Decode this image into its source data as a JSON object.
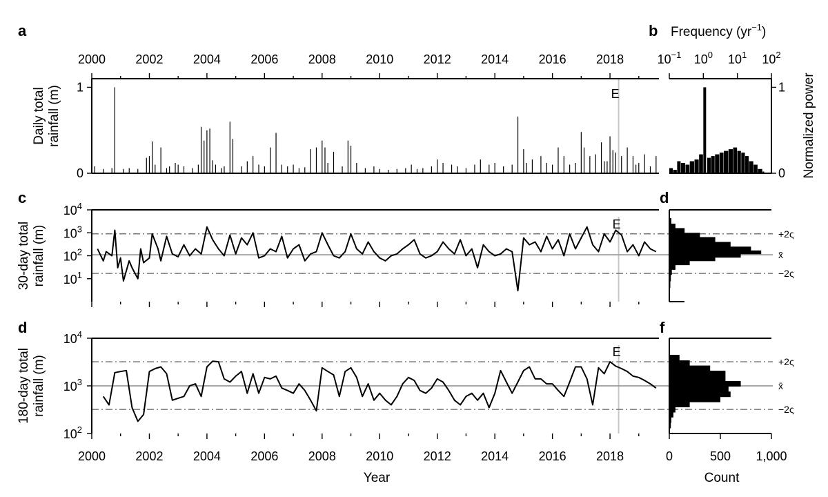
{
  "panels": {
    "a": "a",
    "b": "b",
    "c": "c",
    "d1": "d",
    "d2": "d",
    "f": "f"
  },
  "labels": {
    "frequency": "Frequency (yr",
    "frequency_sup": "−1",
    "frequency_close": ")",
    "normalized_power": "Normalized power",
    "year": "Year",
    "count": "Count",
    "event": "E"
  },
  "chart_data": [
    {
      "id": "a",
      "type": "bar",
      "ylabel": [
        "Daily total",
        "rainfall (m)"
      ],
      "xlim": [
        2000,
        2019.7
      ],
      "ylim": [
        0,
        1.1
      ],
      "xticks": [
        "2000",
        "2002",
        "2004",
        "2006",
        "2008",
        "2010",
        "2012",
        "2014",
        "2016",
        "2018"
      ],
      "yticks": [
        "0",
        "1"
      ],
      "event_year": 2018.3,
      "x": [
        2000.1,
        2000.4,
        2000.7,
        2000.8,
        2001.1,
        2001.3,
        2001.6,
        2001.9,
        2002.0,
        2002.1,
        2002.2,
        2002.4,
        2002.6,
        2002.7,
        2002.9,
        2003.0,
        2003.2,
        2003.5,
        2003.7,
        2003.8,
        2003.9,
        2004.0,
        2004.1,
        2004.2,
        2004.3,
        2004.5,
        2004.6,
        2004.8,
        2004.9,
        2005.2,
        2005.4,
        2005.6,
        2005.8,
        2006.0,
        2006.2,
        2006.4,
        2006.6,
        2006.8,
        2007.0,
        2007.2,
        2007.4,
        2007.6,
        2007.8,
        2008.0,
        2008.1,
        2008.2,
        2008.4,
        2008.7,
        2008.9,
        2009.0,
        2009.2,
        2009.5,
        2009.8,
        2010.0,
        2010.3,
        2010.6,
        2010.9,
        2011.1,
        2011.3,
        2011.5,
        2011.8,
        2012.0,
        2012.2,
        2012.5,
        2012.7,
        2013.0,
        2013.3,
        2013.5,
        2013.8,
        2014.0,
        2014.3,
        2014.6,
        2014.8,
        2015.0,
        2015.1,
        2015.3,
        2015.6,
        2015.8,
        2016.0,
        2016.2,
        2016.4,
        2016.6,
        2016.8,
        2017.0,
        2017.1,
        2017.3,
        2017.5,
        2017.7,
        2017.8,
        2017.9,
        2018.0,
        2018.1,
        2018.2,
        2018.4,
        2018.6,
        2018.8,
        2018.9,
        2019.0,
        2019.2,
        2019.4,
        2019.6
      ],
      "values": [
        0.08,
        0.05,
        0.06,
        1.0,
        0.05,
        0.06,
        0.05,
        0.18,
        0.2,
        0.37,
        0.1,
        0.3,
        0.06,
        0.08,
        0.12,
        0.1,
        0.08,
        0.06,
        0.1,
        0.54,
        0.38,
        0.5,
        0.52,
        0.15,
        0.1,
        0.06,
        0.08,
        0.6,
        0.4,
        0.08,
        0.14,
        0.2,
        0.1,
        0.08,
        0.3,
        0.47,
        0.1,
        0.08,
        0.1,
        0.06,
        0.07,
        0.28,
        0.3,
        0.38,
        0.3,
        0.12,
        0.25,
        0.08,
        0.38,
        0.32,
        0.12,
        0.06,
        0.08,
        0.05,
        0.04,
        0.05,
        0.06,
        0.1,
        0.05,
        0.06,
        0.08,
        0.16,
        0.12,
        0.1,
        0.08,
        0.06,
        0.1,
        0.16,
        0.1,
        0.12,
        0.08,
        0.1,
        0.66,
        0.28,
        0.12,
        0.16,
        0.2,
        0.12,
        0.1,
        0.3,
        0.2,
        0.1,
        0.12,
        0.48,
        0.3,
        0.2,
        0.22,
        0.36,
        0.14,
        0.14,
        0.43,
        0.27,
        0.24,
        0.2,
        0.3,
        0.2,
        0.1,
        0.12,
        0.22,
        0.08,
        0.2
      ]
    },
    {
      "id": "b",
      "type": "bar",
      "xlabel": "Frequency",
      "ylabel": "Normalized power",
      "xscale": "log",
      "xlim": [
        0.1,
        100
      ],
      "ylim": [
        0,
        1.1
      ],
      "xticks": [
        "10",
        "10",
        "10",
        "10"
      ],
      "xtick_exps": [
        "−1",
        "0",
        "1",
        "2"
      ],
      "yticks": [
        "0",
        "1"
      ],
      "x": [
        0.1,
        0.13,
        0.17,
        0.22,
        0.3,
        0.4,
        0.55,
        0.75,
        1.0,
        1.3,
        1.7,
        2.2,
        3.0,
        4.0,
        5.5,
        7.5,
        10,
        13,
        17,
        22,
        30,
        40,
        55
      ],
      "values": [
        0.06,
        0.04,
        0.14,
        0.12,
        0.1,
        0.14,
        0.16,
        0.22,
        1.0,
        0.18,
        0.2,
        0.22,
        0.24,
        0.26,
        0.28,
        0.3,
        0.26,
        0.24,
        0.2,
        0.14,
        0.1,
        0.05,
        0.02
      ]
    },
    {
      "id": "c",
      "type": "line",
      "ylabel": [
        "30-day total",
        "rainfall (m)"
      ],
      "yscale": "log",
      "xlim": [
        2000,
        2019.7
      ],
      "ylim": [
        1,
        10000
      ],
      "xticks": [
        "2000",
        "2002",
        "2004",
        "2006",
        "2008",
        "2010",
        "2012",
        "2014",
        "2016",
        "2018"
      ],
      "yticks": [
        "10",
        "10",
        "10",
        "10"
      ],
      "ytick_exps": [
        "1",
        "2",
        "3",
        "4"
      ],
      "mean": 110,
      "plus2sigma": 900,
      "minus2sigma": 17,
      "event_year": 2018.3,
      "x": [
        2000.2,
        2000.4,
        2000.5,
        2000.7,
        2000.8,
        2000.9,
        2001.0,
        2001.1,
        2001.3,
        2001.4,
        2001.6,
        2001.7,
        2001.8,
        2002.0,
        2002.1,
        2002.3,
        2002.4,
        2002.6,
        2002.8,
        2003.0,
        2003.2,
        2003.4,
        2003.6,
        2003.8,
        2004.0,
        2004.2,
        2004.4,
        2004.6,
        2004.8,
        2005.0,
        2005.2,
        2005.4,
        2005.6,
        2005.8,
        2006.0,
        2006.2,
        2006.4,
        2006.6,
        2006.8,
        2007.0,
        2007.2,
        2007.4,
        2007.6,
        2007.8,
        2008.0,
        2008.2,
        2008.4,
        2008.6,
        2008.8,
        2009.0,
        2009.2,
        2009.4,
        2009.6,
        2009.8,
        2010.0,
        2010.2,
        2010.4,
        2010.6,
        2010.8,
        2011.0,
        2011.2,
        2011.4,
        2011.6,
        2011.8,
        2012.0,
        2012.2,
        2012.4,
        2012.6,
        2012.8,
        2013.0,
        2013.2,
        2013.4,
        2013.6,
        2013.8,
        2014.0,
        2014.2,
        2014.4,
        2014.6,
        2014.8,
        2015.0,
        2015.2,
        2015.4,
        2015.6,
        2015.8,
        2016.0,
        2016.2,
        2016.4,
        2016.6,
        2016.8,
        2017.0,
        2017.2,
        2017.4,
        2017.6,
        2017.8,
        2018.0,
        2018.2,
        2018.4,
        2018.6,
        2018.8,
        2019.0,
        2019.2,
        2019.4,
        2019.6
      ],
      "values": [
        200,
        60,
        150,
        100,
        1300,
        30,
        80,
        8,
        60,
        30,
        10,
        200,
        50,
        80,
        900,
        200,
        60,
        700,
        120,
        90,
        300,
        100,
        200,
        120,
        1800,
        500,
        200,
        100,
        800,
        120,
        600,
        300,
        1000,
        80,
        100,
        200,
        150,
        700,
        80,
        200,
        300,
        60,
        120,
        150,
        1000,
        300,
        100,
        80,
        150,
        900,
        200,
        120,
        400,
        150,
        80,
        60,
        100,
        120,
        200,
        300,
        500,
        120,
        80,
        100,
        150,
        400,
        200,
        120,
        500,
        100,
        200,
        30,
        300,
        150,
        100,
        120,
        200,
        150,
        3,
        600,
        300,
        400,
        150,
        700,
        200,
        500,
        100,
        900,
        200,
        600,
        1800,
        300,
        150,
        900,
        400,
        1300,
        800,
        150,
        300,
        100,
        400,
        200,
        150
      ]
    },
    {
      "id": "d",
      "type": "bar",
      "xlabel": "Count",
      "orientation": "horizontal",
      "yscale": "log",
      "ylim": [
        1,
        10000
      ],
      "xlim": [
        0,
        1000
      ],
      "mean": 110,
      "plus2sigma": 900,
      "minus2sigma": 17,
      "sigma_labels": [
        "+2ς",
        "x̄",
        "−2ς"
      ],
      "y": [
        2,
        4,
        8,
        15,
        25,
        40,
        60,
        85,
        120,
        170,
        250,
        400,
        650,
        1000,
        1600,
        2500
      ],
      "values": [
        5,
        10,
        15,
        25,
        60,
        200,
        450,
        700,
        900,
        800,
        600,
        450,
        300,
        150,
        60,
        20
      ]
    },
    {
      "id": "d2",
      "type": "line",
      "ylabel": [
        "180-day total",
        "rainfall (m)"
      ],
      "xlabel": "Year",
      "yscale": "log",
      "xlim": [
        2000,
        2019.7
      ],
      "ylim": [
        100,
        10000
      ],
      "xticks": [
        "2000",
        "2002",
        "2004",
        "2006",
        "2008",
        "2010",
        "2012",
        "2014",
        "2016",
        "2018"
      ],
      "yticks": [
        "10",
        "10",
        "10"
      ],
      "ytick_exps": [
        "2",
        "3",
        "4"
      ],
      "mean": 1000,
      "plus2sigma": 3200,
      "minus2sigma": 320,
      "event_year": 2018.3,
      "x": [
        2000.4,
        2000.6,
        2000.8,
        2001.0,
        2001.2,
        2001.4,
        2001.6,
        2001.8,
        2002.0,
        2002.2,
        2002.4,
        2002.6,
        2002.8,
        2003.0,
        2003.2,
        2003.4,
        2003.6,
        2003.8,
        2004.0,
        2004.2,
        2004.4,
        2004.6,
        2004.8,
        2005.0,
        2005.2,
        2005.4,
        2005.6,
        2005.8,
        2006.0,
        2006.2,
        2006.4,
        2006.6,
        2006.8,
        2007.0,
        2007.2,
        2007.4,
        2007.6,
        2007.8,
        2008.0,
        2008.2,
        2008.4,
        2008.6,
        2008.8,
        2009.0,
        2009.2,
        2009.4,
        2009.6,
        2009.8,
        2010.0,
        2010.2,
        2010.4,
        2010.6,
        2010.8,
        2011.0,
        2011.2,
        2011.4,
        2011.6,
        2011.8,
        2012.0,
        2012.2,
        2012.4,
        2012.6,
        2012.8,
        2013.0,
        2013.2,
        2013.4,
        2013.6,
        2013.8,
        2014.0,
        2014.2,
        2014.4,
        2014.6,
        2014.8,
        2015.0,
        2015.2,
        2015.4,
        2015.6,
        2015.8,
        2016.0,
        2016.2,
        2016.4,
        2016.6,
        2016.8,
        2017.0,
        2017.2,
        2017.4,
        2017.6,
        2017.8,
        2018.0,
        2018.2,
        2018.4,
        2018.6,
        2018.8,
        2019.0,
        2019.2,
        2019.4,
        2019.6
      ],
      "values": [
        600,
        400,
        1900,
        2000,
        2100,
        350,
        180,
        250,
        2000,
        2300,
        2500,
        1800,
        500,
        550,
        600,
        1000,
        1100,
        600,
        2500,
        3300,
        3200,
        1400,
        1200,
        1600,
        2000,
        700,
        1800,
        700,
        1500,
        1400,
        1600,
        900,
        800,
        700,
        1100,
        800,
        500,
        300,
        2400,
        2000,
        1700,
        600,
        2000,
        2400,
        1500,
        600,
        1100,
        500,
        700,
        500,
        400,
        600,
        1100,
        1500,
        1300,
        800,
        700,
        900,
        1400,
        1200,
        800,
        500,
        400,
        600,
        700,
        500,
        700,
        350,
        700,
        2100,
        1200,
        700,
        1200,
        2100,
        2500,
        1400,
        1400,
        1100,
        1100,
        800,
        600,
        1200,
        2500,
        2500,
        1400,
        400,
        2400,
        1800,
        3200,
        2600,
        2300,
        2000,
        1600,
        1500,
        1300,
        1100,
        900
      ]
    },
    {
      "id": "f",
      "type": "bar",
      "xlabel": "Count",
      "orientation": "horizontal",
      "yscale": "log",
      "ylim": [
        100,
        10000
      ],
      "xlim": [
        0,
        1000
      ],
      "xticks": [
        "0",
        "500",
        "1,000"
      ],
      "mean": 1000,
      "plus2sigma": 3200,
      "minus2sigma": 320,
      "sigma_labels": [
        "+2ς",
        "x̄",
        "−2ς"
      ],
      "y": [
        130,
        170,
        220,
        280,
        360,
        460,
        590,
        760,
        980,
        1260,
        1620,
        2080,
        2670,
        3430
      ],
      "values": [
        15,
        20,
        40,
        60,
        200,
        500,
        600,
        580,
        700,
        550,
        550,
        400,
        200,
        100
      ]
    }
  ]
}
